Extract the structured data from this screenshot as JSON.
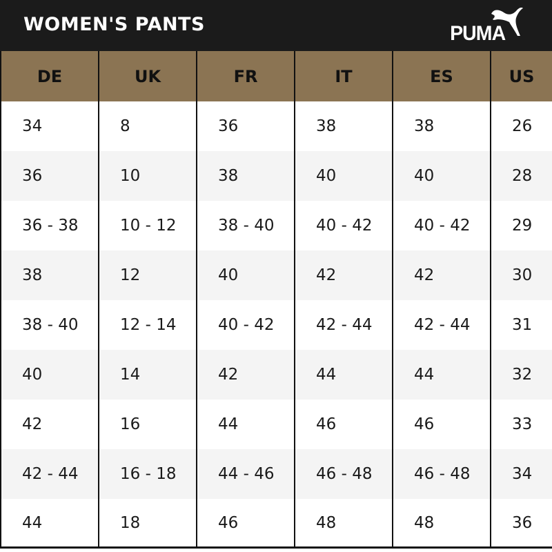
{
  "header": {
    "title": "WOMEN'S PANTS",
    "logo_text": "PUMA",
    "colors": {
      "bar": "#1b1b1b",
      "column_header": "#8b7453",
      "row_alt": "#f4f4f4"
    }
  },
  "table": {
    "columns": [
      "DE",
      "UK",
      "FR",
      "IT",
      "ES",
      "US"
    ],
    "rows": [
      [
        "34",
        "8",
        "36",
        "38",
        "38",
        "26"
      ],
      [
        "36",
        "10",
        "38",
        "40",
        "40",
        "28"
      ],
      [
        "36 - 38",
        "10 - 12",
        "38 - 40",
        "40 - 42",
        "40 - 42",
        "29"
      ],
      [
        "38",
        "12",
        "40",
        "42",
        "42",
        "30"
      ],
      [
        "38 - 40",
        "12 - 14",
        "40 - 42",
        "42 - 44",
        "42 - 44",
        "31"
      ],
      [
        "40",
        "14",
        "42",
        "44",
        "44",
        "32"
      ],
      [
        "42",
        "16",
        "44",
        "46",
        "46",
        "33"
      ],
      [
        "42 - 44",
        "16 - 18",
        "44 - 46",
        "46 - 48",
        "46 - 48",
        "34"
      ],
      [
        "44",
        "18",
        "46",
        "48",
        "48",
        "36"
      ]
    ]
  }
}
